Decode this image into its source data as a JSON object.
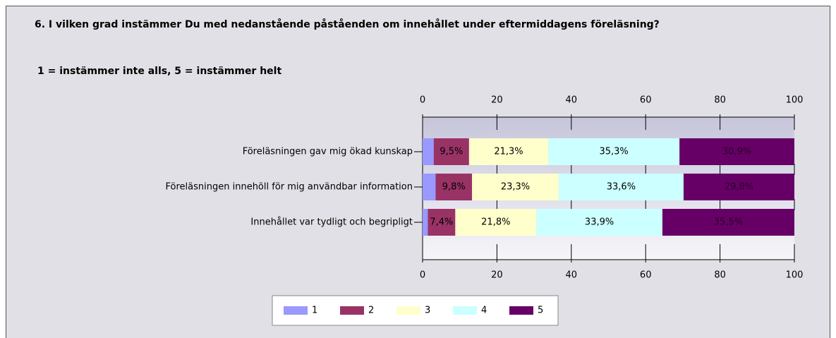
{
  "chart_data": {
    "type": "bar",
    "orientation": "horizontal",
    "stacked": true,
    "title": "6. I vilken grad instämmer Du med nedanstående påståenden om innehållet under eftermiddagens föreläsning?",
    "subtitle": "1 = instämmer inte alls, 5 = instämmer helt",
    "categories": [
      "Föreläsningen gav mig ökad kunskap",
      "Föreläsningen innehöll för mig användbar information",
      "Innehållet var tydligt och begripligt"
    ],
    "series": [
      {
        "name": "1",
        "color": "#9999ff",
        "values": [
          3.0,
          3.5,
          1.4
        ],
        "value_labels": [
          null,
          null,
          null
        ]
      },
      {
        "name": "2",
        "color": "#993366",
        "values": [
          9.5,
          9.8,
          7.4
        ],
        "value_labels": [
          "9,5%",
          "9,8%",
          "7,4%"
        ]
      },
      {
        "name": "3",
        "color": "#ffffcc",
        "values": [
          21.3,
          23.3,
          21.8
        ],
        "value_labels": [
          "21,3%",
          "23,3%",
          "21,8%"
        ]
      },
      {
        "name": "4",
        "color": "#ccffff",
        "values": [
          35.3,
          33.6,
          33.9
        ],
        "value_labels": [
          "35,3%",
          "33,6%",
          "33,9%"
        ]
      },
      {
        "name": "5",
        "color": "#660066",
        "values": [
          30.9,
          29.8,
          35.5
        ],
        "value_labels": [
          "30,9%",
          "29,8%",
          "35,5%"
        ]
      }
    ],
    "xlim": [
      0,
      100
    ],
    "xticks": [
      0,
      20,
      40,
      60,
      80,
      100
    ],
    "legend": "bottom"
  }
}
